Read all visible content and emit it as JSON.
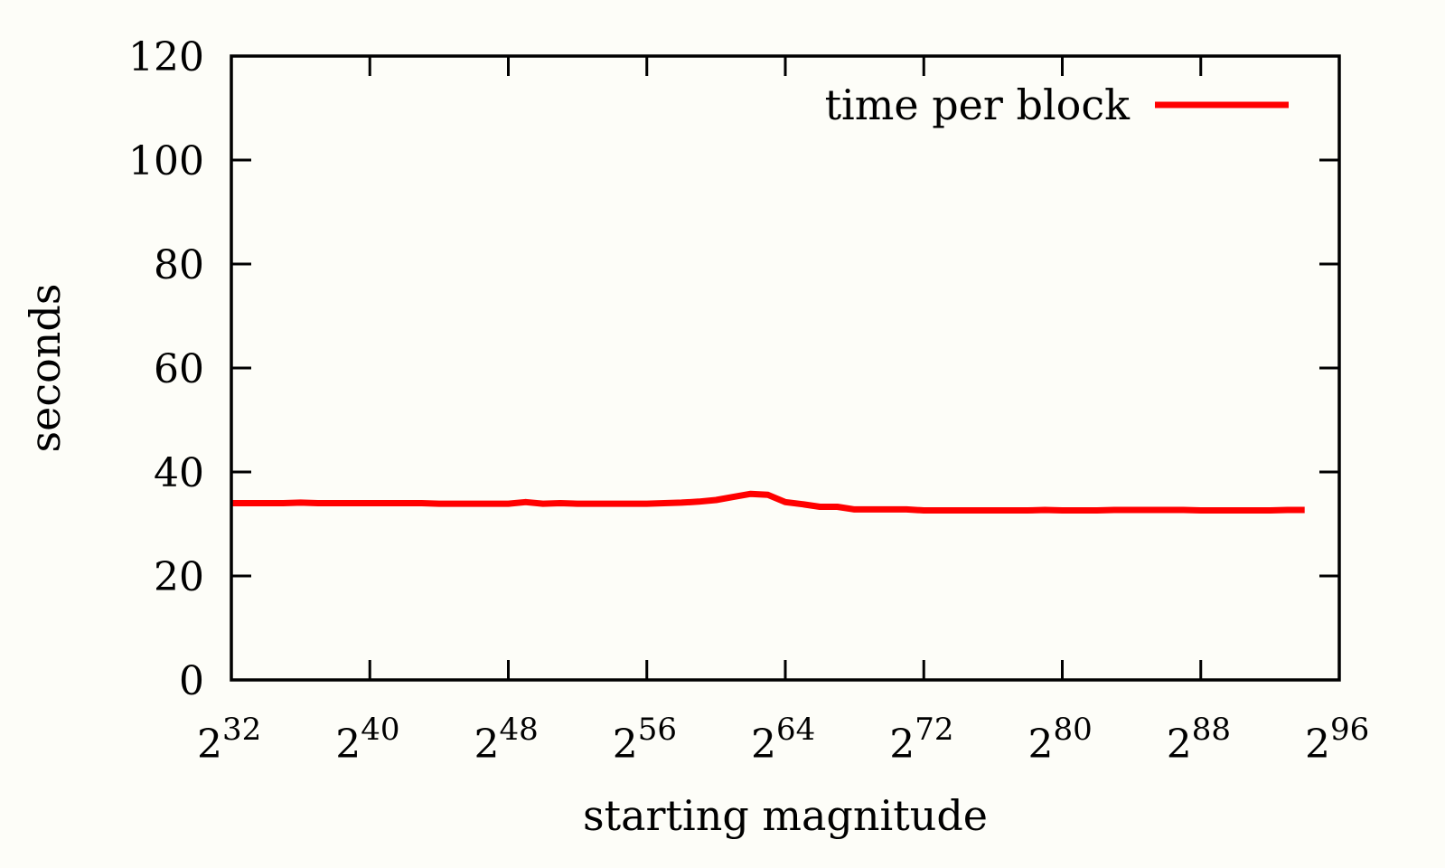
{
  "chart_data": {
    "type": "line",
    "xlabel": "starting magnitude",
    "ylabel": "seconds",
    "x_scale": "log2",
    "xlim": [
      32,
      96
    ],
    "ylim": [
      0,
      120
    ],
    "grid": false,
    "legend_position": "top-right",
    "x_ticks": [
      {
        "base": "2",
        "exp": "32",
        "value": 32
      },
      {
        "base": "2",
        "exp": "40",
        "value": 40
      },
      {
        "base": "2",
        "exp": "48",
        "value": 48
      },
      {
        "base": "2",
        "exp": "56",
        "value": 56
      },
      {
        "base": "2",
        "exp": "64",
        "value": 64
      },
      {
        "base": "2",
        "exp": "72",
        "value": 72
      },
      {
        "base": "2",
        "exp": "80",
        "value": 80
      },
      {
        "base": "2",
        "exp": "88",
        "value": 88
      },
      {
        "base": "2",
        "exp": "96",
        "value": 96
      }
    ],
    "y_ticks": [
      0,
      20,
      40,
      60,
      80,
      100,
      120
    ],
    "series": [
      {
        "name": "time per block",
        "color": "#ff0000",
        "x": [
          32,
          33,
          34,
          35,
          36,
          37,
          38,
          39,
          40,
          41,
          42,
          43,
          44,
          45,
          46,
          47,
          48,
          49,
          50,
          51,
          52,
          53,
          54,
          55,
          56,
          57,
          58,
          59,
          60,
          61,
          62,
          63,
          64,
          65,
          66,
          67,
          68,
          69,
          70,
          71,
          72,
          73,
          74,
          75,
          76,
          77,
          78,
          79,
          80,
          81,
          82,
          83,
          84,
          85,
          86,
          87,
          88,
          89,
          90,
          91,
          92,
          93,
          94
        ],
        "y": [
          34.0,
          34.0,
          34.0,
          34.0,
          34.1,
          34.0,
          34.0,
          34.0,
          34.0,
          34.0,
          34.0,
          34.0,
          33.9,
          33.9,
          33.9,
          33.9,
          33.9,
          34.2,
          33.9,
          34.0,
          33.9,
          33.9,
          33.9,
          33.9,
          33.9,
          34.0,
          34.1,
          34.3,
          34.6,
          35.2,
          35.8,
          35.6,
          34.2,
          33.8,
          33.3,
          33.3,
          32.8,
          32.8,
          32.8,
          32.8,
          32.6,
          32.6,
          32.6,
          32.6,
          32.6,
          32.6,
          32.6,
          32.7,
          32.6,
          32.6,
          32.6,
          32.7,
          32.7,
          32.7,
          32.7,
          32.7,
          32.6,
          32.6,
          32.6,
          32.6,
          32.6,
          32.7,
          32.7
        ]
      }
    ]
  }
}
